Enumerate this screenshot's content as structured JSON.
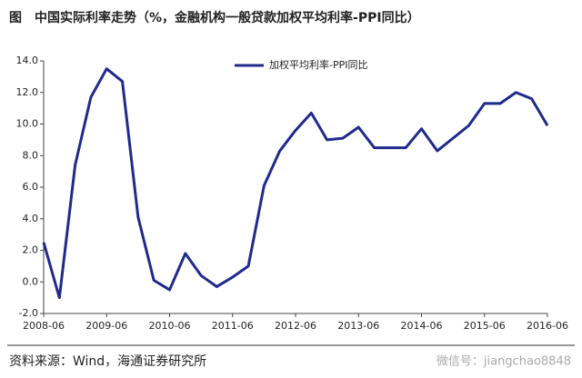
{
  "chart_data": {
    "type": "line",
    "title": "图　中国实际利率走势（%，金融机构一般贷款加权平均利率-PPI同比）",
    "source": "资料来源：Wind，海通证券研究所",
    "watermark": "微信号：jiangchao8848",
    "categories": [
      "2008-06",
      null,
      null,
      null,
      "2009-06",
      null,
      null,
      null,
      "2010-06",
      null,
      null,
      null,
      "2011-06",
      null,
      null,
      null,
      "2012-06",
      null,
      null,
      null,
      "2013-06",
      null,
      null,
      null,
      "2014-06",
      null,
      null,
      null,
      "2015-06",
      null,
      null,
      null,
      "2016-06"
    ],
    "series": [
      {
        "name": "加权平均利率-PPI同比",
        "color": "#1f2a8c",
        "values": [
          2.5,
          -1.0,
          7.4,
          11.7,
          13.5,
          12.7,
          4.1,
          0.1,
          -0.5,
          1.8,
          0.4,
          -0.3,
          0.3,
          1.0,
          6.1,
          8.3,
          9.6,
          10.7,
          9.0,
          9.1,
          9.8,
          8.5,
          8.5,
          8.5,
          9.7,
          8.3,
          9.1,
          9.9,
          11.3,
          11.3,
          12.0,
          11.6,
          9.9
        ]
      }
    ],
    "ylim": [
      -2,
      14
    ],
    "yticks": [
      {
        "value": -2,
        "label": "-2.0"
      },
      {
        "value": 0,
        "label": "0.0"
      },
      {
        "value": 2,
        "label": "2.0"
      },
      {
        "value": 4,
        "label": "4.0"
      },
      {
        "value": 6,
        "label": "6.0"
      },
      {
        "value": 8,
        "label": "8.0"
      },
      {
        "value": 10,
        "label": "10.0"
      },
      {
        "value": 12,
        "label": "12.0"
      },
      {
        "value": 14,
        "label": "14.0"
      }
    ],
    "legend": "top"
  }
}
